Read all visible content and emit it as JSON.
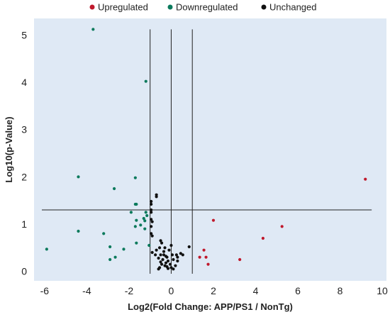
{
  "chart_data": {
    "type": "scatter",
    "xlabel": "Log2(Fold Change: APP/PS1 / NonTg)",
    "ylabel": "Log10(p-Value)",
    "xlim": [
      -6.5,
      10.2
    ],
    "ylim": [
      -0.2,
      5.35
    ],
    "xticks": [
      -6,
      -4,
      -2,
      0,
      2,
      4,
      6,
      8,
      10
    ],
    "yticks": [
      0,
      1,
      2,
      3,
      4,
      5
    ],
    "grid": false,
    "legend_position": "top",
    "thresholds": {
      "vertical_lines": [
        -1,
        0,
        1
      ],
      "horizontal_line": 1.3
    },
    "series": [
      {
        "name": "Upregulated",
        "color": "#c0192c",
        "points": [
          [
            9.2,
            1.95
          ],
          [
            5.25,
            0.95
          ],
          [
            4.35,
            0.7
          ],
          [
            3.25,
            0.25
          ],
          [
            2.0,
            1.08
          ],
          [
            1.55,
            0.45
          ],
          [
            1.35,
            0.3
          ],
          [
            1.65,
            0.3
          ],
          [
            1.75,
            0.15
          ]
        ]
      },
      {
        "name": "Downregulated",
        "color": "#0b7a5c",
        "points": [
          [
            -3.7,
            5.12
          ],
          [
            -1.2,
            4.02
          ],
          [
            -4.4,
            2.0
          ],
          [
            -1.7,
            1.98
          ],
          [
            -2.7,
            1.75
          ],
          [
            -1.7,
            1.42
          ],
          [
            -1.65,
            1.42
          ],
          [
            -1.9,
            1.25
          ],
          [
            -1.2,
            1.25
          ],
          [
            -1.15,
            1.18
          ],
          [
            -1.3,
            1.12
          ],
          [
            -1.25,
            1.07
          ],
          [
            -1.65,
            1.08
          ],
          [
            -1.45,
            0.98
          ],
          [
            -1.7,
            0.95
          ],
          [
            -1.25,
            0.9
          ],
          [
            -4.4,
            0.85
          ],
          [
            -3.2,
            0.8
          ],
          [
            -5.9,
            0.47
          ],
          [
            -2.9,
            0.52
          ],
          [
            -2.25,
            0.47
          ],
          [
            -1.05,
            0.55
          ],
          [
            -1.65,
            0.6
          ],
          [
            -2.65,
            0.3
          ],
          [
            -2.9,
            0.25
          ]
        ]
      },
      {
        "name": "Unchanged",
        "color": "#111111",
        "points": [
          [
            -0.7,
            1.62
          ],
          [
            -0.7,
            1.58
          ],
          [
            -0.95,
            1.48
          ],
          [
            -0.95,
            1.42
          ],
          [
            -0.95,
            1.3
          ],
          [
            -0.95,
            1.25
          ],
          [
            -0.95,
            1.1
          ],
          [
            -0.9,
            1.05
          ],
          [
            -0.95,
            0.95
          ],
          [
            -0.95,
            0.8
          ],
          [
            -0.9,
            0.75
          ],
          [
            -0.5,
            0.65
          ],
          [
            -0.45,
            0.6
          ],
          [
            -0.3,
            0.5
          ],
          [
            -0.55,
            0.5
          ],
          [
            -0.7,
            0.45
          ],
          [
            -0.9,
            0.4
          ],
          [
            -0.75,
            0.35
          ],
          [
            -0.5,
            0.35
          ],
          [
            -0.35,
            0.35
          ],
          [
            -0.25,
            0.32
          ],
          [
            -0.2,
            0.3
          ],
          [
            -0.6,
            0.28
          ],
          [
            -0.4,
            0.25
          ],
          [
            -0.15,
            0.22
          ],
          [
            -0.5,
            0.2
          ],
          [
            -0.25,
            0.18
          ],
          [
            -0.45,
            0.15
          ],
          [
            -0.3,
            0.12
          ],
          [
            -0.2,
            0.1
          ],
          [
            -0.55,
            0.08
          ],
          [
            -0.15,
            0.06
          ],
          [
            0.0,
            0.55
          ],
          [
            0.05,
            0.35
          ],
          [
            0.1,
            0.25
          ],
          [
            0.25,
            0.35
          ],
          [
            0.3,
            0.3
          ],
          [
            0.3,
            0.22
          ],
          [
            0.45,
            0.38
          ],
          [
            0.55,
            0.35
          ],
          [
            0.2,
            0.12
          ],
          [
            0.0,
            0.08
          ],
          [
            0.1,
            0.05
          ],
          [
            -0.05,
            0.15
          ],
          [
            0.85,
            0.52
          ],
          [
            -0.35,
            0.42
          ],
          [
            -0.1,
            0.45
          ],
          [
            -0.6,
            0.05
          ]
        ]
      }
    ]
  }
}
